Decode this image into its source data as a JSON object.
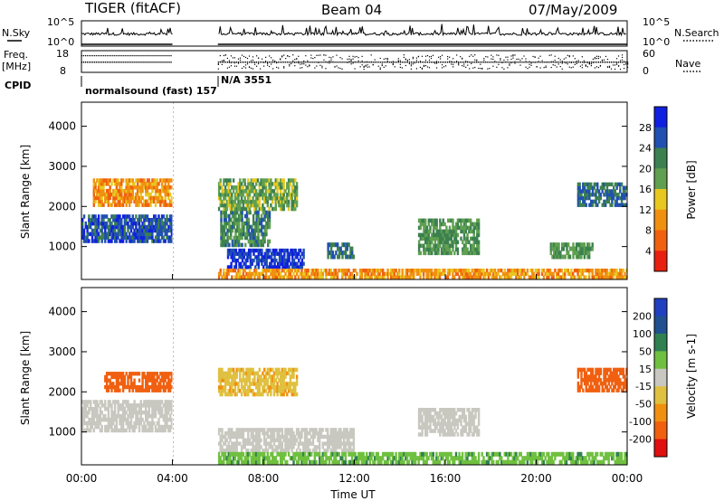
{
  "header": {
    "radar": "TIGER (fitACF)",
    "beam": "Beam 04",
    "date": "07/May/2009"
  },
  "noise_panel": {
    "left_label": "N.Sky",
    "right_label": "N.Search",
    "left_ticks": [
      "10^5",
      "10^0"
    ],
    "right_ticks": [
      "10^5",
      "10^0"
    ]
  },
  "freq_panel": {
    "left_label_1": "Freq.",
    "left_label_2": "[MHz]",
    "right_label": "Nave",
    "left_ticks": [
      "18",
      "8"
    ],
    "right_ticks": [
      "60",
      "0"
    ]
  },
  "cpid": {
    "label": "CPID",
    "segment_1": "normalsound (fast) 157",
    "segment_2": "N/A 3551"
  },
  "x_axis": {
    "label": "Time UT",
    "ticks": [
      "00:00",
      "04:00",
      "08:00",
      "12:00",
      "16:00",
      "20:00",
      "00:00"
    ]
  },
  "chart_data": [
    {
      "type": "heatmap",
      "panel": "power",
      "ylabel": "Slant Range [km]",
      "yticks": [
        1000,
        2000,
        3000,
        4000
      ],
      "ylim": [
        180,
        4600
      ],
      "xlim_hours": [
        0,
        24
      ],
      "data_gap_hours": [
        4.0,
        6.0
      ],
      "colorbar": {
        "label": "Power [dB]",
        "ticks": [
          4,
          8,
          12,
          16,
          20,
          24,
          28
        ],
        "colors": [
          "#1020e0",
          "#2050b0",
          "#3c8050",
          "#60a050",
          "#e8c820",
          "#f09010",
          "#f06010",
          "#e82010"
        ]
      },
      "echo_regions": [
        {
          "t0": 0.0,
          "t1": 4.0,
          "r0": 1100,
          "r1": 1800,
          "value": 26
        },
        {
          "t0": 0.5,
          "t1": 4.0,
          "r0": 2000,
          "r1": 2700,
          "value": 10
        },
        {
          "t0": 6.1,
          "t1": 8.3,
          "r0": 1000,
          "r1": 1900,
          "value": 22
        },
        {
          "t0": 6.4,
          "t1": 9.8,
          "r0": 450,
          "r1": 950,
          "value": 28
        },
        {
          "t0": 6.0,
          "t1": 9.5,
          "r0": 1900,
          "r1": 2700,
          "value": 18
        },
        {
          "t0": 10.8,
          "t1": 12.0,
          "r0": 700,
          "r1": 1100,
          "value": 24
        },
        {
          "t0": 14.8,
          "t1": 17.5,
          "r0": 800,
          "r1": 1700,
          "value": 20
        },
        {
          "t0": 20.6,
          "t1": 22.5,
          "r0": 700,
          "r1": 1100,
          "value": 20
        },
        {
          "t0": 21.8,
          "t1": 24.0,
          "r0": 2000,
          "r1": 2600,
          "value": 24
        },
        {
          "t0": 6.0,
          "t1": 24.0,
          "r0": 200,
          "r1": 450,
          "value": 10
        }
      ]
    },
    {
      "type": "heatmap",
      "panel": "velocity",
      "ylabel": "Slant Range [km]",
      "yticks": [
        1000,
        2000,
        3000,
        4000
      ],
      "ylim": [
        180,
        4600
      ],
      "xlim_hours": [
        0,
        24
      ],
      "data_gap_hours": [
        4.0,
        6.0
      ],
      "colorbar": {
        "label": "Velocity [m s-1]",
        "ticks": [
          200,
          100,
          50,
          15,
          -15,
          -50,
          -100,
          -200
        ],
        "colors": [
          "#2040c0",
          "#205090",
          "#308050",
          "#70c040",
          "#c8c8c0",
          "#e0c040",
          "#f09010",
          "#f06010",
          "#e01010"
        ]
      },
      "echo_regions": [
        {
          "t0": 0.0,
          "t1": 4.0,
          "r0": 1000,
          "r1": 1800,
          "value": 0
        },
        {
          "t0": 1.0,
          "t1": 4.0,
          "r0": 2000,
          "r1": 2500,
          "value": -150
        },
        {
          "t0": 6.0,
          "t1": 12.0,
          "r0": 500,
          "r1": 1100,
          "value": 0
        },
        {
          "t0": 6.0,
          "t1": 24.0,
          "r0": 200,
          "r1": 500,
          "value": 40
        },
        {
          "t0": 14.8,
          "t1": 17.5,
          "r0": 900,
          "r1": 1600,
          "value": 0
        },
        {
          "t0": 21.8,
          "t1": 24.0,
          "r0": 2000,
          "r1": 2600,
          "value": -180
        },
        {
          "t0": 6.0,
          "t1": 9.5,
          "r0": 1900,
          "r1": 2600,
          "value": -40
        }
      ]
    }
  ]
}
